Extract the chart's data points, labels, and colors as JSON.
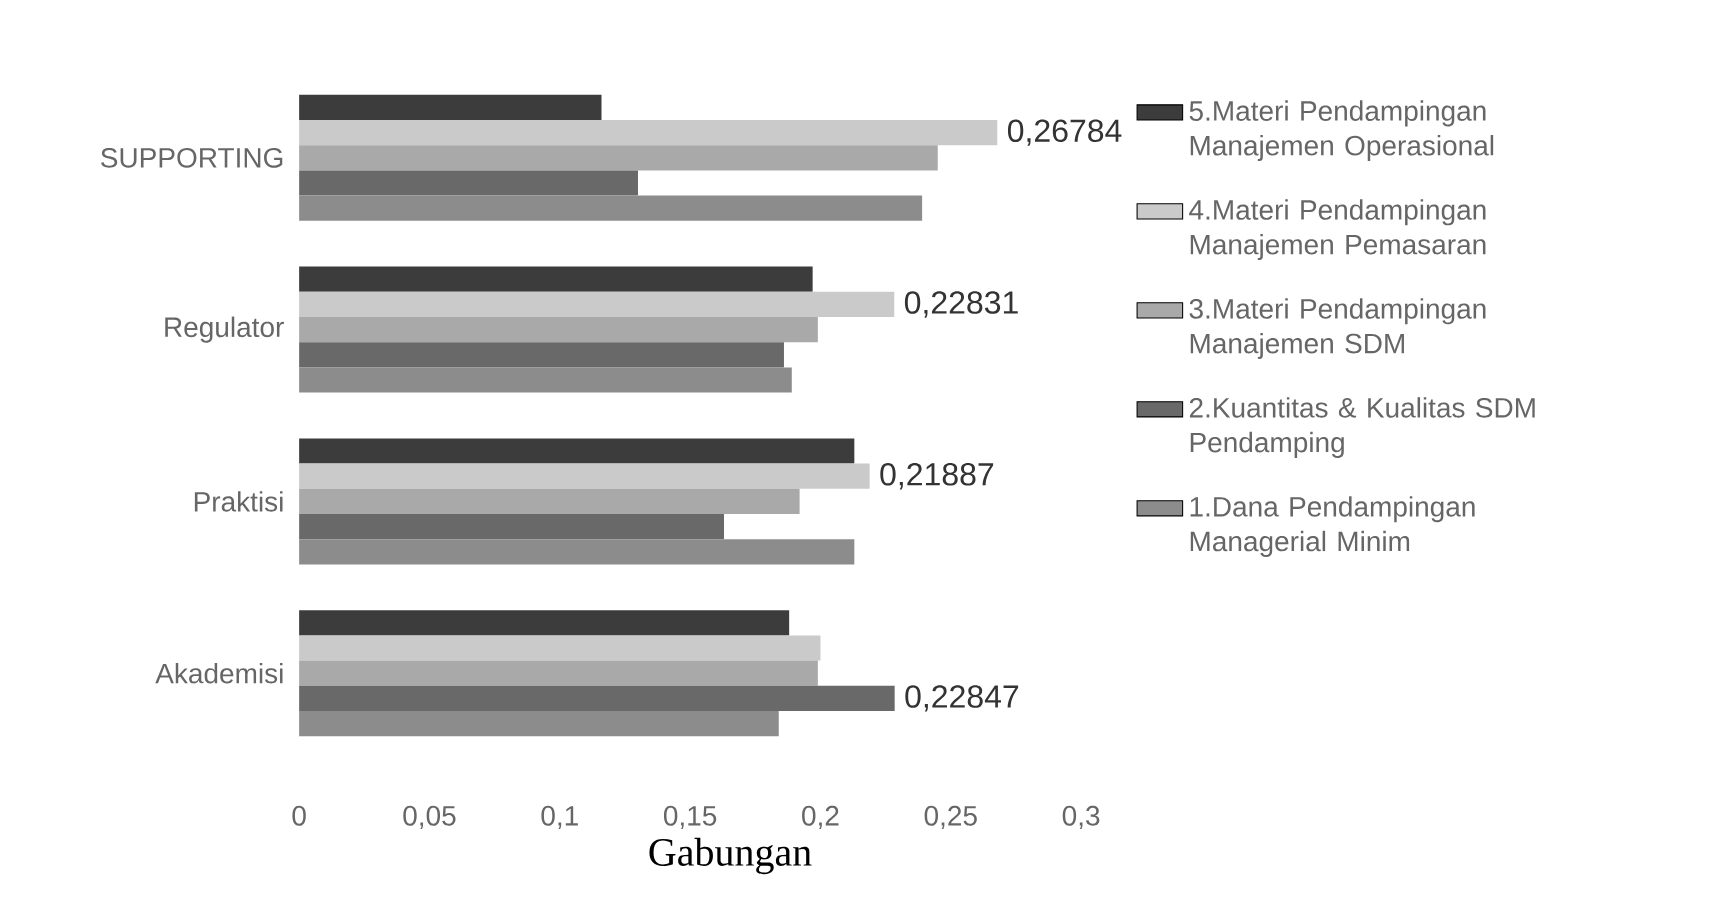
{
  "chart_data": {
    "type": "bar",
    "orientation": "horizontal",
    "title": "Gabungan",
    "categories": [
      "SUPPORTING",
      "Regulator",
      "Praktisi",
      "Akademisi"
    ],
    "series": [
      {
        "name": "5.Materi Pendampingan Manajemen Operasional",
        "color": "#3c3c3c",
        "values": [
          0.116,
          0.197,
          0.213,
          0.188
        ]
      },
      {
        "name": "4.Materi Pendampingan Manajemen Pemasaran",
        "color": "#cacaca",
        "values": [
          0.26784,
          0.22831,
          0.21887,
          0.2
        ],
        "value_labels": [
          "0,26784",
          "0,22831",
          "0,21887",
          null
        ]
      },
      {
        "name": "3.Materi Pendampingan Manajemen SDM",
        "color": "#a9a9a9",
        "values": [
          0.245,
          0.199,
          0.192,
          0.199
        ]
      },
      {
        "name": "2.Kuantitas & Kualitas SDM Pendamping",
        "color": "#696969",
        "values": [
          0.13,
          0.186,
          0.163,
          0.22847
        ],
        "value_labels": [
          null,
          null,
          null,
          "0,22847"
        ]
      },
      {
        "name": "1.Dana Pendampingan Managerial Minim",
        "color": "#8c8c8c",
        "values": [
          0.239,
          0.189,
          0.213,
          0.184
        ]
      }
    ],
    "xlim": [
      0,
      0.3
    ],
    "xticks": [
      {
        "value": 0,
        "label": "0"
      },
      {
        "value": 0.05,
        "label": "0,05"
      },
      {
        "value": 0.1,
        "label": "0,1"
      },
      {
        "value": 0.15,
        "label": "0,15"
      },
      {
        "value": 0.2,
        "label": "0,2"
      },
      {
        "value": 0.25,
        "label": "0,25"
      },
      {
        "value": 0.3,
        "label": "0,3"
      }
    ],
    "grid": false,
    "legend": "right"
  }
}
